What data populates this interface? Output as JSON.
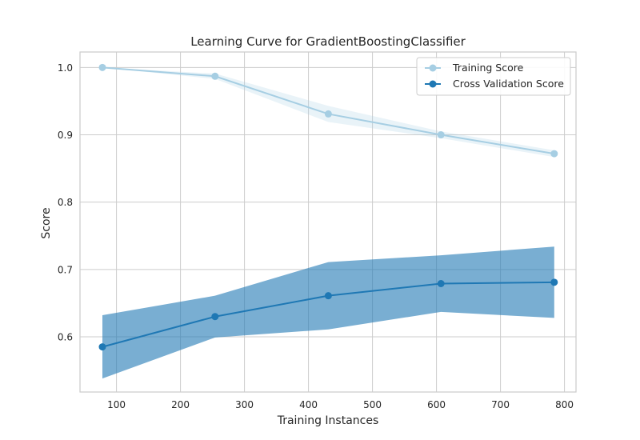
{
  "chart_data": {
    "type": "line",
    "title": "Learning Curve for GradientBoostingClassifier",
    "xlabel": "Training Instances",
    "ylabel": "Score",
    "xlim": [
      43,
      818
    ],
    "ylim": [
      0.518,
      1.023
    ],
    "xticks": [
      100,
      200,
      300,
      400,
      500,
      600,
      700,
      800
    ],
    "yticks": [
      0.6,
      0.7,
      0.8,
      0.9,
      1.0
    ],
    "ytick_labels": [
      "0.6",
      "0.7",
      "0.8",
      "0.9",
      "1.0"
    ],
    "grid": true,
    "legend_position": "top-right",
    "x": [
      78,
      254,
      431,
      607,
      784
    ],
    "series": [
      {
        "name": "Training Score",
        "color": "#a6cee3",
        "values": [
          1.0,
          0.987,
          0.931,
          0.9,
          0.872
        ],
        "band_upper": [
          1.0,
          0.991,
          0.943,
          0.905,
          0.877
        ],
        "band_lower": [
          1.0,
          0.983,
          0.919,
          0.895,
          0.867
        ]
      },
      {
        "name": "Cross Validation Score",
        "color": "#1f78b4",
        "values": [
          0.585,
          0.63,
          0.661,
          0.679,
          0.681
        ],
        "band_upper": [
          0.632,
          0.661,
          0.711,
          0.721,
          0.734
        ],
        "band_lower": [
          0.538,
          0.599,
          0.611,
          0.637,
          0.628
        ]
      }
    ]
  }
}
